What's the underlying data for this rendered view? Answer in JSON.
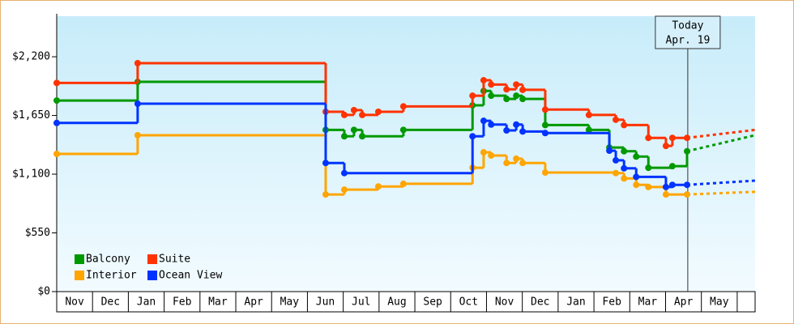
{
  "chart_data": {
    "type": "step",
    "xlim": [
      0,
      19.5
    ],
    "ylim": [
      0,
      2580
    ],
    "xticks": [
      {
        "value": 0.5,
        "label": "Nov"
      },
      {
        "value": 1.5,
        "label": "Dec"
      },
      {
        "value": 2.5,
        "label": "Jan"
      },
      {
        "value": 3.5,
        "label": "Feb"
      },
      {
        "value": 4.5,
        "label": "Mar"
      },
      {
        "value": 5.5,
        "label": "Apr"
      },
      {
        "value": 6.5,
        "label": "May"
      },
      {
        "value": 7.5,
        "label": "Jun"
      },
      {
        "value": 8.5,
        "label": "Jul"
      },
      {
        "value": 9.5,
        "label": "Aug"
      },
      {
        "value": 10.5,
        "label": "Sep"
      },
      {
        "value": 11.5,
        "label": "Oct"
      },
      {
        "value": 12.5,
        "label": "Nov"
      },
      {
        "value": 13.5,
        "label": "Dec"
      },
      {
        "value": 14.5,
        "label": "Jan"
      },
      {
        "value": 15.5,
        "label": "Feb"
      },
      {
        "value": 16.5,
        "label": "Mar"
      },
      {
        "value": 17.5,
        "label": "Apr"
      },
      {
        "value": 18.5,
        "label": "May"
      }
    ],
    "yticks": [
      {
        "value": 0,
        "label": "$0"
      },
      {
        "value": 550,
        "label": "$550"
      },
      {
        "value": 1100,
        "label": "$1,100"
      },
      {
        "value": 1650,
        "label": "$1,650"
      },
      {
        "value": 2200,
        "label": "$2,200"
      }
    ],
    "today": {
      "x": 17.62,
      "label": "Today",
      "date": "Apr. 19"
    },
    "legend": "lower left",
    "series": [
      {
        "name": "Balcony",
        "color": "#009900",
        "x": [
          0,
          2.26,
          7.51,
          8.03,
          8.3,
          8.53,
          9.68,
          11.61,
          11.92,
          12.13,
          12.56,
          12.83,
          13.01,
          13.64,
          14.86,
          15.43,
          15.84,
          16.18,
          16.52,
          17.19,
          17.6
        ],
        "values": [
          1790,
          1965,
          1515,
          1455,
          1515,
          1455,
          1515,
          1745,
          1880,
          1835,
          1805,
          1835,
          1805,
          1560,
          1515,
          1350,
          1315,
          1265,
          1160,
          1175,
          1315
        ],
        "forecast": {
          "x": [
            17.6,
            19.5
          ],
          "values": [
            1315,
            1465
          ]
        }
      },
      {
        "name": "Suite",
        "color": "#ff3300",
        "x": [
          0,
          2.26,
          7.51,
          8.03,
          8.3,
          8.53,
          8.98,
          9.68,
          11.61,
          11.92,
          12.13,
          12.56,
          12.83,
          13.01,
          13.64,
          14.86,
          15.61,
          15.84,
          16.52,
          17.01,
          17.19,
          17.6
        ],
        "values": [
          1955,
          2140,
          1685,
          1655,
          1700,
          1655,
          1685,
          1735,
          1835,
          1980,
          1940,
          1895,
          1940,
          1890,
          1705,
          1655,
          1610,
          1560,
          1440,
          1365,
          1440,
          1440
        ],
        "forecast": {
          "x": [
            17.6,
            19.5
          ],
          "values": [
            1440,
            1515
          ]
        }
      },
      {
        "name": "Interior",
        "color": "#ffa500",
        "x": [
          0,
          2.26,
          7.51,
          8.03,
          8.98,
          9.68,
          11.61,
          11.92,
          12.13,
          12.56,
          12.83,
          13.01,
          13.64,
          15.61,
          15.84,
          16.18,
          16.52,
          17.01,
          17.6
        ],
        "values": [
          1290,
          1465,
          910,
          955,
          985,
          1010,
          1160,
          1305,
          1275,
          1205,
          1245,
          1205,
          1115,
          1110,
          1060,
          1000,
          980,
          910,
          910
        ],
        "forecast": {
          "x": [
            17.6,
            19.5
          ],
          "values": [
            910,
            935
          ]
        }
      },
      {
        "name": "Ocean View",
        "color": "#0033ff",
        "x": [
          0,
          2.26,
          7.51,
          8.03,
          11.61,
          11.92,
          12.13,
          12.56,
          12.83,
          13.01,
          13.64,
          15.43,
          15.61,
          15.84,
          16.18,
          17.01,
          17.19,
          17.6
        ],
        "values": [
          1580,
          1760,
          1205,
          1110,
          1455,
          1600,
          1565,
          1510,
          1565,
          1500,
          1485,
          1320,
          1230,
          1155,
          1075,
          980,
          1000,
          1000
        ],
        "forecast": {
          "x": [
            17.6,
            19.5
          ],
          "values": [
            1000,
            1040
          ]
        }
      }
    ]
  }
}
